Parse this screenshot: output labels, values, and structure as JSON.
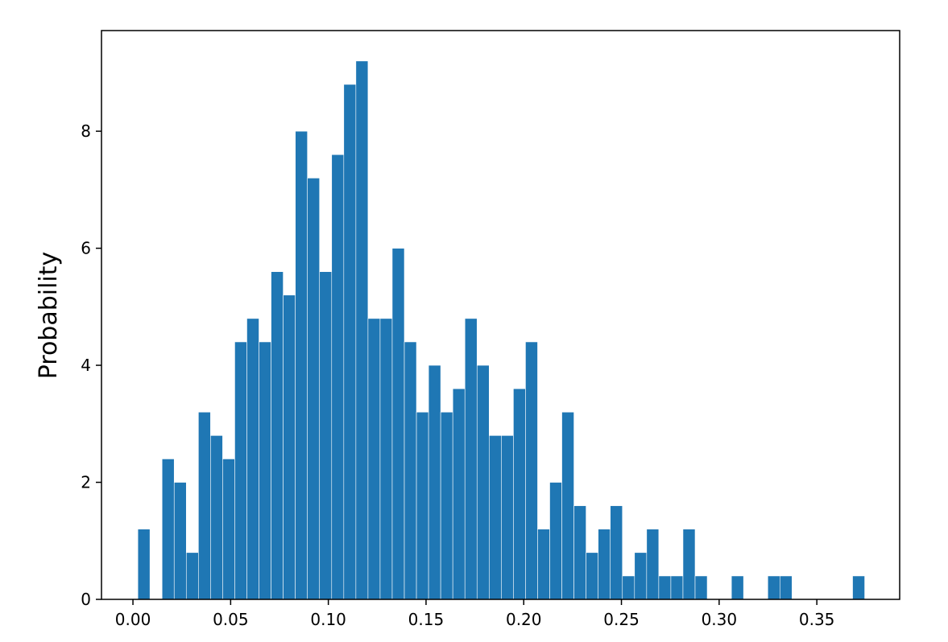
{
  "chart_data": {
    "type": "histogram",
    "y_label": "Probability",
    "color": "#1f77b4",
    "bins": [
      0.0025,
      0.0087,
      0.0149,
      0.0211,
      0.0273,
      0.0335,
      0.0397,
      0.0459,
      0.0521,
      0.0583,
      0.0645,
      0.0707,
      0.0769,
      0.0831,
      0.0893,
      0.0955,
      0.1017,
      0.1079,
      0.1141,
      0.1203,
      0.1265,
      0.1327,
      0.1389,
      0.1451,
      0.1513,
      0.1575,
      0.1637,
      0.1699,
      0.1761,
      0.1823,
      0.1885,
      0.1947,
      0.2009,
      0.2071,
      0.2133,
      0.2195,
      0.2257,
      0.2319,
      0.2381,
      0.2443,
      0.2505,
      0.2567,
      0.2629,
      0.2691,
      0.2753,
      0.2815,
      0.2877,
      0.2939,
      0.3001,
      0.3063,
      0.3125,
      0.3187,
      0.3249,
      0.3311,
      0.3373,
      0.3435,
      0.3497,
      0.3559,
      0.3621,
      0.3683,
      0.3745
    ],
    "values": [
      1.2,
      0,
      2.4,
      2.0,
      0.8,
      3.2,
      2.8,
      2.4,
      4.4,
      4.8,
      4.4,
      5.6,
      5.2,
      8.0,
      7.2,
      5.6,
      7.6,
      8.8,
      9.2,
      4.8,
      4.8,
      6.0,
      4.4,
      3.2,
      4.0,
      3.2,
      3.6,
      4.8,
      4.0,
      2.8,
      2.8,
      3.6,
      4.4,
      1.2,
      2.0,
      3.2,
      1.6,
      0.8,
      1.2,
      1.6,
      0.4,
      0.8,
      1.2,
      0.4,
      0.4,
      1.2,
      0.4,
      0,
      0,
      0.4,
      0,
      0,
      0.4,
      0.4,
      0,
      0,
      0,
      0,
      0,
      0.4
    ],
    "xlim": [
      -0.0161,
      0.3924
    ],
    "ylim": [
      0,
      9.72
    ],
    "xticks": [
      {
        "value": 0,
        "label": "0.00"
      },
      {
        "value": 0.05,
        "label": "0.05"
      },
      {
        "value": 0.1,
        "label": "0.10"
      },
      {
        "value": 0.15,
        "label": "0.15"
      },
      {
        "value": 0.2,
        "label": "0.20"
      },
      {
        "value": 0.25,
        "label": "0.25"
      },
      {
        "value": 0.3,
        "label": "0.30"
      },
      {
        "value": 0.35,
        "label": "0.35"
      }
    ],
    "yticks": [
      0,
      2,
      4,
      6,
      8
    ]
  }
}
